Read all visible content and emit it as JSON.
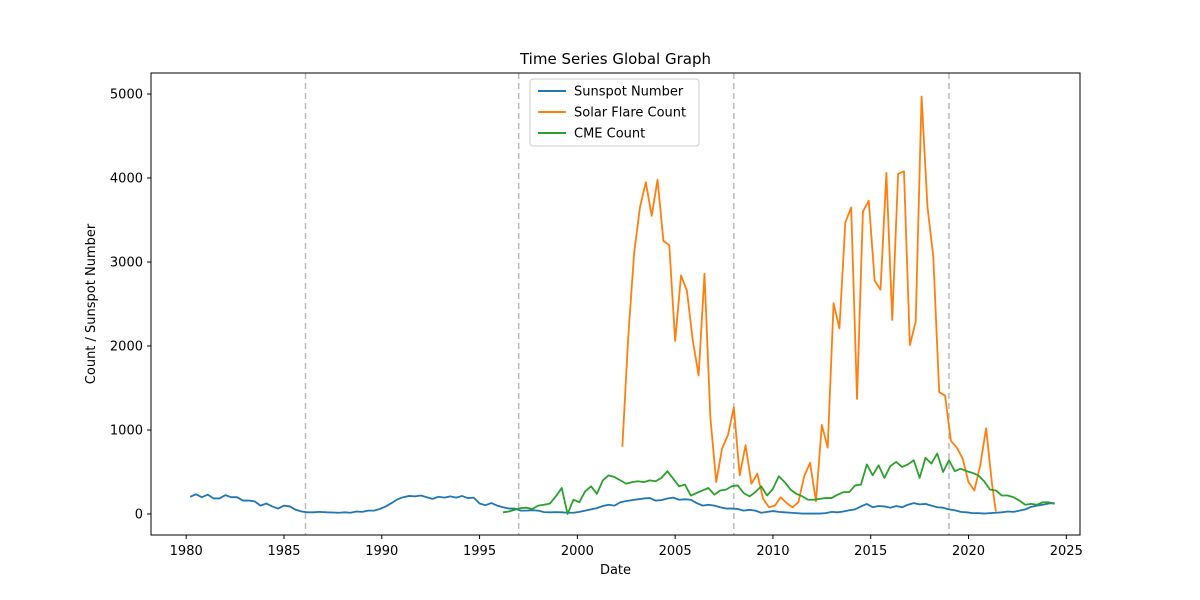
{
  "chart_data": {
    "type": "line",
    "title": "Time Series Global Graph",
    "xlabel": "Date",
    "ylabel": "Count / Sunspot Number",
    "xlim": [
      1978.2,
      2025.7
    ],
    "ylim": [
      -250,
      5250
    ],
    "xticks": [
      1980,
      1985,
      1990,
      1995,
      2000,
      2005,
      2010,
      2015,
      2020,
      2025
    ],
    "yticks": [
      0,
      1000,
      2000,
      3000,
      4000,
      5000
    ],
    "grid": false,
    "legend_position": "top-center",
    "vlines": [
      1986.1,
      1997.0,
      2008.0,
      2019.0
    ],
    "vline_color": "#bbbbbb",
    "series": [
      {
        "name": "Sunspot Number",
        "color": "#1f77b4",
        "points": [
          [
            1980.2,
            205
          ],
          [
            1980.5,
            235
          ],
          [
            1980.8,
            200
          ],
          [
            1981.1,
            230
          ],
          [
            1981.4,
            185
          ],
          [
            1981.7,
            185
          ],
          [
            1982.0,
            225
          ],
          [
            1982.3,
            200
          ],
          [
            1982.6,
            200
          ],
          [
            1982.9,
            160
          ],
          [
            1983.2,
            160
          ],
          [
            1983.5,
            150
          ],
          [
            1983.8,
            100
          ],
          [
            1984.1,
            125
          ],
          [
            1984.4,
            90
          ],
          [
            1984.7,
            65
          ],
          [
            1985.0,
            100
          ],
          [
            1985.3,
            90
          ],
          [
            1985.6,
            50
          ],
          [
            1985.9,
            30
          ],
          [
            1986.2,
            20
          ],
          [
            1986.5,
            20
          ],
          [
            1986.8,
            25
          ],
          [
            1987.2,
            20
          ],
          [
            1987.5,
            18
          ],
          [
            1987.8,
            15
          ],
          [
            1988.1,
            20
          ],
          [
            1988.4,
            15
          ],
          [
            1988.7,
            30
          ],
          [
            1989.0,
            25
          ],
          [
            1989.3,
            40
          ],
          [
            1989.6,
            40
          ],
          [
            1989.9,
            60
          ],
          [
            1990.2,
            90
          ],
          [
            1990.5,
            130
          ],
          [
            1990.8,
            175
          ],
          [
            1991.1,
            200
          ],
          [
            1991.4,
            215
          ],
          [
            1991.7,
            210
          ],
          [
            1992.0,
            220
          ],
          [
            1992.3,
            200
          ],
          [
            1992.6,
            180
          ],
          [
            1992.9,
            205
          ],
          [
            1993.2,
            195
          ],
          [
            1993.5,
            210
          ],
          [
            1993.8,
            195
          ],
          [
            1994.1,
            215
          ],
          [
            1994.4,
            190
          ],
          [
            1994.7,
            195
          ],
          [
            1995.0,
            125
          ],
          [
            1995.3,
            105
          ],
          [
            1995.6,
            130
          ],
          [
            1995.9,
            100
          ],
          [
            1996.2,
            80
          ],
          [
            1996.5,
            65
          ],
          [
            1996.8,
            65
          ],
          [
            1997.1,
            40
          ],
          [
            1997.4,
            40
          ],
          [
            1997.7,
            45
          ],
          [
            1998.0,
            40
          ],
          [
            1998.3,
            22
          ],
          [
            1998.6,
            20
          ],
          [
            1998.9,
            22
          ],
          [
            1999.2,
            20
          ],
          [
            1999.5,
            15
          ],
          [
            1999.8,
            15
          ],
          [
            2000.1,
            25
          ],
          [
            2000.4,
            40
          ],
          [
            2000.7,
            55
          ],
          [
            2001.0,
            70
          ],
          [
            2001.3,
            95
          ],
          [
            2001.6,
            110
          ],
          [
            2001.9,
            100
          ],
          [
            2002.2,
            140
          ],
          [
            2002.5,
            155
          ],
          [
            2002.8,
            165
          ],
          [
            2003.1,
            175
          ],
          [
            2003.4,
            185
          ],
          [
            2003.7,
            190
          ],
          [
            2004.0,
            160
          ],
          [
            2004.3,
            165
          ],
          [
            2004.6,
            185
          ],
          [
            2004.9,
            195
          ],
          [
            2005.2,
            170
          ],
          [
            2005.5,
            175
          ],
          [
            2005.8,
            170
          ],
          [
            2006.1,
            130
          ],
          [
            2006.4,
            100
          ],
          [
            2006.7,
            110
          ],
          [
            2007.0,
            100
          ],
          [
            2007.3,
            80
          ],
          [
            2007.6,
            65
          ],
          [
            2007.9,
            65
          ],
          [
            2008.2,
            60
          ],
          [
            2008.5,
            40
          ],
          [
            2008.8,
            50
          ],
          [
            2009.1,
            40
          ],
          [
            2009.4,
            15
          ],
          [
            2009.7,
            25
          ],
          [
            2010.0,
            35
          ],
          [
            2010.3,
            25
          ],
          [
            2010.6,
            20
          ],
          [
            2010.9,
            15
          ],
          [
            2011.2,
            10
          ],
          [
            2011.5,
            5
          ],
          [
            2011.8,
            5
          ],
          [
            2012.1,
            5
          ],
          [
            2012.4,
            5
          ],
          [
            2012.7,
            10
          ],
          [
            2013.0,
            25
          ],
          [
            2013.3,
            20
          ],
          [
            2013.6,
            30
          ],
          [
            2013.9,
            45
          ],
          [
            2014.2,
            55
          ],
          [
            2014.5,
            90
          ],
          [
            2014.8,
            120
          ],
          [
            2015.1,
            80
          ],
          [
            2015.4,
            95
          ],
          [
            2015.7,
            90
          ],
          [
            2016.0,
            75
          ],
          [
            2016.3,
            95
          ],
          [
            2016.6,
            80
          ],
          [
            2016.9,
            110
          ],
          [
            2017.2,
            130
          ],
          [
            2017.5,
            115
          ],
          [
            2017.8,
            120
          ],
          [
            2018.1,
            100
          ],
          [
            2018.4,
            80
          ],
          [
            2018.7,
            75
          ],
          [
            2019.0,
            55
          ],
          [
            2019.3,
            45
          ],
          [
            2019.6,
            25
          ],
          [
            2019.9,
            20
          ],
          [
            2020.2,
            10
          ],
          [
            2020.5,
            10
          ],
          [
            2020.8,
            5
          ],
          [
            2021.1,
            10
          ],
          [
            2021.4,
            15
          ],
          [
            2021.7,
            20
          ],
          [
            2022.0,
            30
          ],
          [
            2022.3,
            25
          ],
          [
            2022.6,
            40
          ],
          [
            2022.9,
            55
          ],
          [
            2023.2,
            85
          ],
          [
            2023.5,
            100
          ],
          [
            2023.8,
            110
          ],
          [
            2024.1,
            125
          ],
          [
            2024.4,
            130
          ]
        ]
      },
      {
        "name": "Solar Flare Count",
        "color": "#ff7f0e",
        "points": [
          [
            2002.3,
            800
          ],
          [
            2002.6,
            2100
          ],
          [
            2002.9,
            3100
          ],
          [
            2003.2,
            3650
          ],
          [
            2003.5,
            3950
          ],
          [
            2003.8,
            3550
          ],
          [
            2004.1,
            3980
          ],
          [
            2004.4,
            3250
          ],
          [
            2004.7,
            3200
          ],
          [
            2005.0,
            2060
          ],
          [
            2005.3,
            2840
          ],
          [
            2005.6,
            2660
          ],
          [
            2005.9,
            2070
          ],
          [
            2006.2,
            1650
          ],
          [
            2006.5,
            2860
          ],
          [
            2006.8,
            1150
          ],
          [
            2007.1,
            380
          ],
          [
            2007.4,
            780
          ],
          [
            2007.7,
            940
          ],
          [
            2008.0,
            1270
          ],
          [
            2008.3,
            460
          ],
          [
            2008.6,
            820
          ],
          [
            2008.9,
            360
          ],
          [
            2009.2,
            480
          ],
          [
            2009.5,
            180
          ],
          [
            2009.8,
            80
          ],
          [
            2010.1,
            100
          ],
          [
            2010.4,
            200
          ],
          [
            2010.7,
            130
          ],
          [
            2011.0,
            80
          ],
          [
            2011.3,
            140
          ],
          [
            2011.6,
            450
          ],
          [
            2011.9,
            610
          ],
          [
            2012.2,
            150
          ],
          [
            2012.5,
            1060
          ],
          [
            2012.8,
            790
          ],
          [
            2013.1,
            2510
          ],
          [
            2013.4,
            2210
          ],
          [
            2013.7,
            3470
          ],
          [
            2014.0,
            3650
          ],
          [
            2014.3,
            1370
          ],
          [
            2014.6,
            3600
          ],
          [
            2014.9,
            3730
          ],
          [
            2015.2,
            2780
          ],
          [
            2015.5,
            2670
          ],
          [
            2015.8,
            4060
          ],
          [
            2016.1,
            2310
          ],
          [
            2016.4,
            4050
          ],
          [
            2016.7,
            4080
          ],
          [
            2017.0,
            2010
          ],
          [
            2017.3,
            2290
          ],
          [
            2017.6,
            4970
          ],
          [
            2017.9,
            3660
          ],
          [
            2018.2,
            3060
          ],
          [
            2018.5,
            1450
          ],
          [
            2018.8,
            1410
          ],
          [
            2019.1,
            870
          ],
          [
            2019.4,
            790
          ],
          [
            2019.7,
            660
          ],
          [
            2020.0,
            380
          ],
          [
            2020.3,
            280
          ],
          [
            2020.6,
            580
          ],
          [
            2020.9,
            1020
          ],
          [
            2021.2,
            360
          ],
          [
            2021.4,
            30
          ]
        ]
      },
      {
        "name": "CME Count",
        "color": "#2ca02c",
        "points": [
          [
            1996.2,
            20
          ],
          [
            1996.5,
            30
          ],
          [
            1996.8,
            50
          ],
          [
            1997.1,
            70
          ],
          [
            1997.4,
            75
          ],
          [
            1997.7,
            60
          ],
          [
            1998.0,
            100
          ],
          [
            1998.3,
            110
          ],
          [
            1998.6,
            125
          ],
          [
            1998.9,
            210
          ],
          [
            1999.2,
            310
          ],
          [
            1999.5,
            0
          ],
          [
            1999.8,
            170
          ],
          [
            2000.1,
            140
          ],
          [
            2000.4,
            270
          ],
          [
            2000.7,
            330
          ],
          [
            2001.0,
            240
          ],
          [
            2001.3,
            400
          ],
          [
            2001.6,
            460
          ],
          [
            2001.9,
            440
          ],
          [
            2002.2,
            400
          ],
          [
            2002.5,
            360
          ],
          [
            2002.8,
            380
          ],
          [
            2003.1,
            390
          ],
          [
            2003.4,
            380
          ],
          [
            2003.7,
            400
          ],
          [
            2004.0,
            390
          ],
          [
            2004.3,
            430
          ],
          [
            2004.6,
            510
          ],
          [
            2004.9,
            420
          ],
          [
            2005.2,
            330
          ],
          [
            2005.5,
            350
          ],
          [
            2005.8,
            220
          ],
          [
            2006.1,
            250
          ],
          [
            2006.4,
            280
          ],
          [
            2006.7,
            310
          ],
          [
            2007.0,
            230
          ],
          [
            2007.3,
            280
          ],
          [
            2007.6,
            290
          ],
          [
            2007.9,
            330
          ],
          [
            2008.2,
            340
          ],
          [
            2008.5,
            250
          ],
          [
            2008.8,
            210
          ],
          [
            2009.1,
            260
          ],
          [
            2009.4,
            330
          ],
          [
            2009.7,
            220
          ],
          [
            2010.0,
            300
          ],
          [
            2010.3,
            450
          ],
          [
            2010.6,
            380
          ],
          [
            2010.9,
            290
          ],
          [
            2011.2,
            240
          ],
          [
            2011.5,
            210
          ],
          [
            2011.8,
            170
          ],
          [
            2012.1,
            170
          ],
          [
            2012.4,
            180
          ],
          [
            2012.7,
            190
          ],
          [
            2013.0,
            190
          ],
          [
            2013.3,
            230
          ],
          [
            2013.6,
            260
          ],
          [
            2013.9,
            260
          ],
          [
            2014.2,
            340
          ],
          [
            2014.5,
            350
          ],
          [
            2014.8,
            590
          ],
          [
            2015.1,
            460
          ],
          [
            2015.4,
            580
          ],
          [
            2015.7,
            430
          ],
          [
            2016.0,
            570
          ],
          [
            2016.3,
            620
          ],
          [
            2016.6,
            560
          ],
          [
            2016.9,
            590
          ],
          [
            2017.2,
            640
          ],
          [
            2017.5,
            430
          ],
          [
            2017.8,
            670
          ],
          [
            2018.1,
            600
          ],
          [
            2018.4,
            720
          ],
          [
            2018.7,
            500
          ],
          [
            2019.0,
            640
          ],
          [
            2019.3,
            510
          ],
          [
            2019.6,
            540
          ],
          [
            2019.9,
            510
          ],
          [
            2020.2,
            490
          ],
          [
            2020.5,
            460
          ],
          [
            2020.8,
            390
          ],
          [
            2021.1,
            290
          ],
          [
            2021.4,
            280
          ],
          [
            2021.7,
            220
          ],
          [
            2022.0,
            220
          ],
          [
            2022.3,
            200
          ],
          [
            2022.6,
            160
          ],
          [
            2022.9,
            110
          ],
          [
            2023.2,
            120
          ],
          [
            2023.5,
            110
          ],
          [
            2023.8,
            140
          ],
          [
            2024.1,
            140
          ],
          [
            2024.4,
            120
          ]
        ]
      }
    ]
  }
}
